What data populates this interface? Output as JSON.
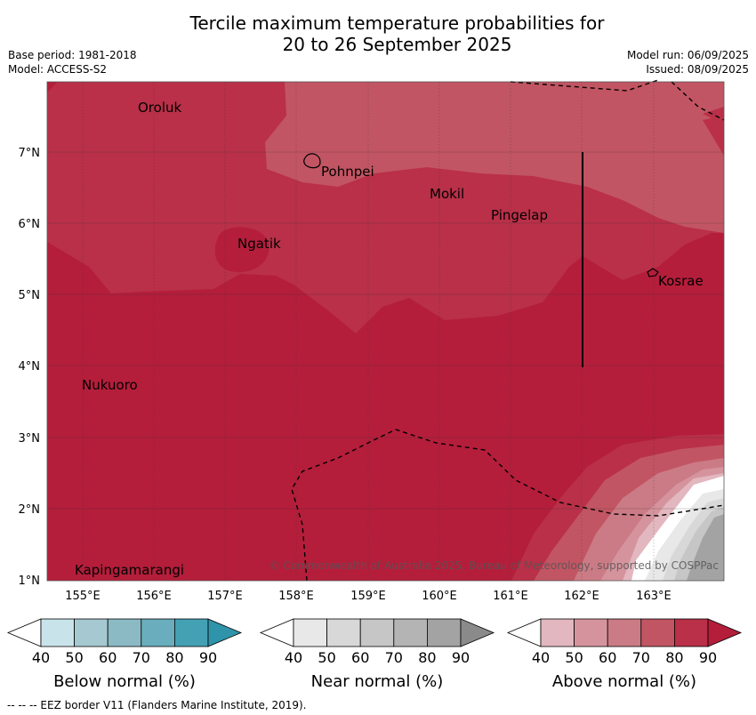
{
  "title": {
    "line1": "Tercile maximum temperature probabilities for",
    "line2": "20 to 26 September 2025"
  },
  "meta": {
    "base_period": "Base period: 1981-2018",
    "model": "Model: ACCESS-S2",
    "model_run": "Model run: 06/09/2025",
    "issued": "Issued: 08/09/2025"
  },
  "map": {
    "lat_labels": [
      "7°N",
      "6°N",
      "5°N",
      "4°N",
      "3°N",
      "2°N",
      "1°N"
    ],
    "lon_labels": [
      "155°E",
      "156°E",
      "157°E",
      "158°E",
      "159°E",
      "160°E",
      "161°E",
      "162°E",
      "163°E"
    ],
    "places": [
      "Oroluk",
      "Pohnpei",
      "Mokil",
      "Pingelap",
      "Ngatik",
      "Kosrae",
      "Nukuoro",
      "Kapingamarangi"
    ],
    "copyright": "© Commonwealth of Australia 2025, Bureau of Meteorology, supported by COSPPac"
  },
  "legends": [
    {
      "label": "Below normal (%)",
      "ticks": [
        "40",
        "50",
        "60",
        "70",
        "80",
        "90"
      ],
      "colors": [
        "#ffffff",
        "#c9e3ea",
        "#a6c9d1",
        "#8bbac5",
        "#6aaebd",
        "#44a1b3",
        "#2f93aa"
      ]
    },
    {
      "label": "Near normal (%)",
      "ticks": [
        "40",
        "50",
        "60",
        "70",
        "80",
        "90"
      ],
      "colors": [
        "#ffffff",
        "#e8e8e8",
        "#d8d8d8",
        "#c6c6c6",
        "#b4b4b4",
        "#a3a3a3",
        "#8a8a8a"
      ]
    },
    {
      "label": "Above normal (%)",
      "ticks": [
        "40",
        "50",
        "60",
        "70",
        "80",
        "90"
      ],
      "colors": [
        "#ffffff",
        "#e3b7bf",
        "#d5949d",
        "#cb7b85",
        "#c25563",
        "#b93048",
        "#b41e3b"
      ]
    }
  ],
  "footer": "--  --  -- EEZ border V11 (Flanders Marine Institute, 2019)."
}
